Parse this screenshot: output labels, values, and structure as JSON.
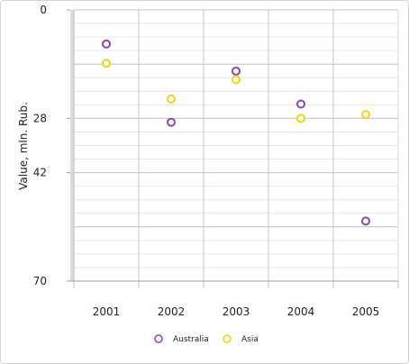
{
  "chart_data": {
    "type": "scatter",
    "categories": [
      "2001",
      "2002",
      "2003",
      "2004",
      "2005"
    ],
    "ylabel": "Value, mln. Rub.",
    "yticks": [
      "0",
      "28",
      "42",
      "70"
    ],
    "ytick_values": [
      0,
      28,
      42,
      70
    ],
    "ylim": [
      0,
      70
    ],
    "y_inverted": true,
    "legend_position": "bottom-center",
    "series": [
      {
        "name": "Australia",
        "color": "#8e44ad",
        "values": [
          8.8,
          29,
          15.8,
          24.3,
          54.5
        ]
      },
      {
        "name": "Asia",
        "color": "#f2d40b",
        "values": [
          13.8,
          23,
          18,
          28,
          27
        ]
      }
    ]
  }
}
